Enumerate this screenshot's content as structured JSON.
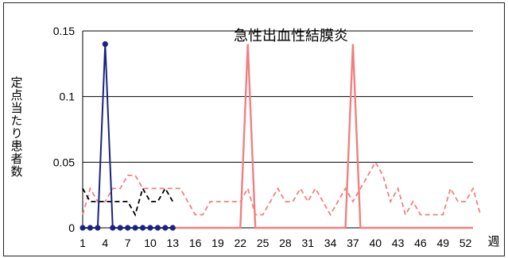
{
  "chart_data": {
    "type": "line",
    "title": "急性出血性結膜炎",
    "ylabel": "定点当たり患者数",
    "xlabel": "週",
    "ylim": [
      0,
      0.15
    ],
    "y_ticks": [
      "0",
      "0.05",
      "0.1",
      "0.15"
    ],
    "y_tick_values": [
      0,
      0.05,
      0.1,
      0.15
    ],
    "x_ticks": [
      "1",
      "4",
      "7",
      "10",
      "13",
      "16",
      "19",
      "22",
      "25",
      "28",
      "31",
      "34",
      "37",
      "40",
      "43",
      "46",
      "49",
      "52"
    ],
    "x_tick_values": [
      1,
      4,
      7,
      10,
      13,
      16,
      19,
      22,
      25,
      28,
      31,
      34,
      37,
      40,
      43,
      46,
      49,
      52
    ],
    "grid": true,
    "series": [
      {
        "name": "",
        "color": "#f08080",
        "style": "dashed",
        "values": [
          0.01,
          0.03,
          0.02,
          0.02,
          0.03,
          0.03,
          0.04,
          0.04,
          0.03,
          0.03,
          0.03,
          0.03,
          0.03,
          0.03,
          0.02,
          0.01,
          0.01,
          0.02,
          0.02,
          0.02,
          0.02,
          0.02,
          0.03,
          0.01,
          0.01,
          0.02,
          0.03,
          0.02,
          0.02,
          0.03,
          0.02,
          0.03,
          0.02,
          0.01,
          0.02,
          0.03,
          0.02,
          0.03,
          0.04,
          0.05,
          0.04,
          0.02,
          0.03,
          0.01,
          0.02,
          0.01,
          0.01,
          0.01,
          0.01,
          0.03,
          0.02,
          0.02,
          0.03,
          0.01
        ]
      },
      {
        "name": "",
        "color": "#000000",
        "style": "dashed",
        "values": [
          0.03,
          0.02,
          0.02,
          0.02,
          0.02,
          0.02,
          0.02,
          0.01,
          0.03,
          0.02,
          0.02,
          0.03,
          0.02
        ]
      },
      {
        "name": "",
        "color": "#f08080",
        "style": "solid",
        "values": [
          null,
          null,
          null,
          null,
          null,
          null,
          null,
          null,
          null,
          null,
          null,
          null,
          0,
          0,
          0,
          0,
          0,
          0,
          0,
          0,
          0,
          0,
          0.14,
          0,
          0,
          0,
          0,
          0,
          0,
          0,
          0,
          0,
          0,
          0,
          0,
          0,
          0.14,
          0,
          0,
          0,
          0,
          0,
          0,
          0,
          0,
          0,
          0,
          0,
          0,
          0,
          0,
          0,
          0
        ]
      },
      {
        "name": "",
        "color": "#1a237e",
        "style": "solid-markers",
        "values": [
          0,
          0,
          0,
          0.14,
          0,
          0,
          0,
          0,
          0,
          0,
          0,
          0,
          0
        ]
      }
    ]
  }
}
